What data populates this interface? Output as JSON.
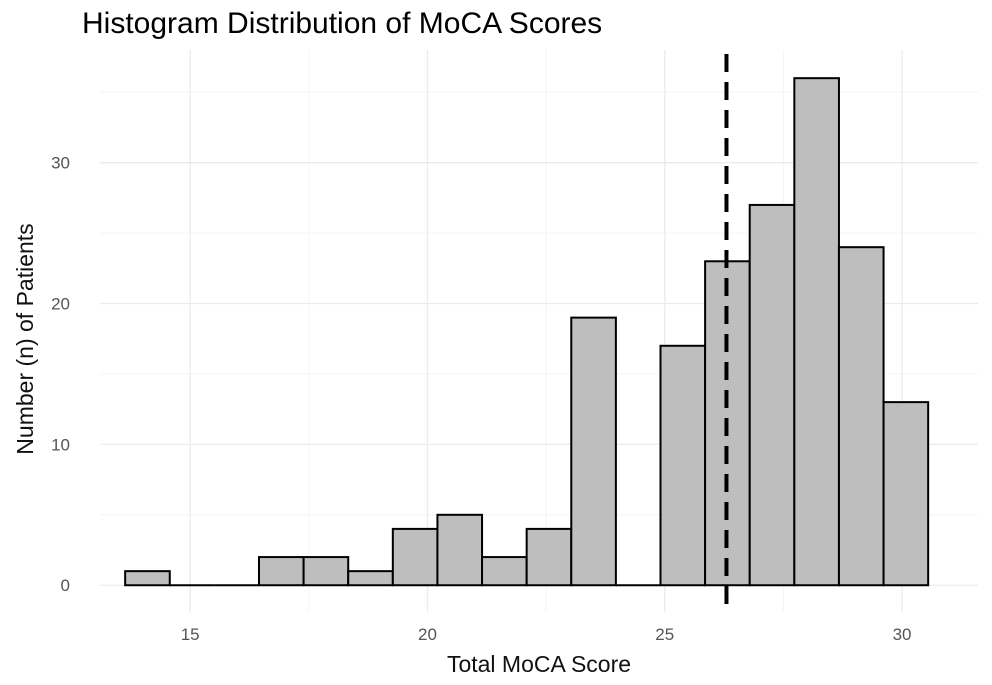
{
  "chart_data": {
    "type": "bar",
    "title": "Histogram Distribution of MoCA Scores",
    "xlabel": "Total MoCA Score",
    "ylabel": "Number (n) of Patients",
    "xlim": [
      13.1,
      31.6
    ],
    "ylim": [
      -1.9,
      38
    ],
    "xticks": [
      15,
      20,
      25,
      30
    ],
    "yticks": [
      0,
      10,
      20,
      30
    ],
    "bin_width": 0.94,
    "bins": [
      {
        "center": 14.1,
        "count": 1
      },
      {
        "center": 15.04,
        "count": 0
      },
      {
        "center": 15.98,
        "count": 0
      },
      {
        "center": 16.92,
        "count": 2
      },
      {
        "center": 17.86,
        "count": 2
      },
      {
        "center": 18.8,
        "count": 1
      },
      {
        "center": 19.74,
        "count": 4
      },
      {
        "center": 20.68,
        "count": 5
      },
      {
        "center": 21.62,
        "count": 2
      },
      {
        "center": 22.56,
        "count": 4
      },
      {
        "center": 23.5,
        "count": 19
      },
      {
        "center": 24.44,
        "count": 0
      },
      {
        "center": 25.38,
        "count": 17
      },
      {
        "center": 26.32,
        "count": 23
      },
      {
        "center": 27.26,
        "count": 27
      },
      {
        "center": 28.2,
        "count": 36
      },
      {
        "center": 29.14,
        "count": 24
      },
      {
        "center": 30.08,
        "count": 13
      }
    ],
    "reference_line": {
      "x": 26.3,
      "style": "dashed"
    },
    "bar_fill": "#bebebe",
    "bar_stroke": "#000000",
    "grid": true
  }
}
